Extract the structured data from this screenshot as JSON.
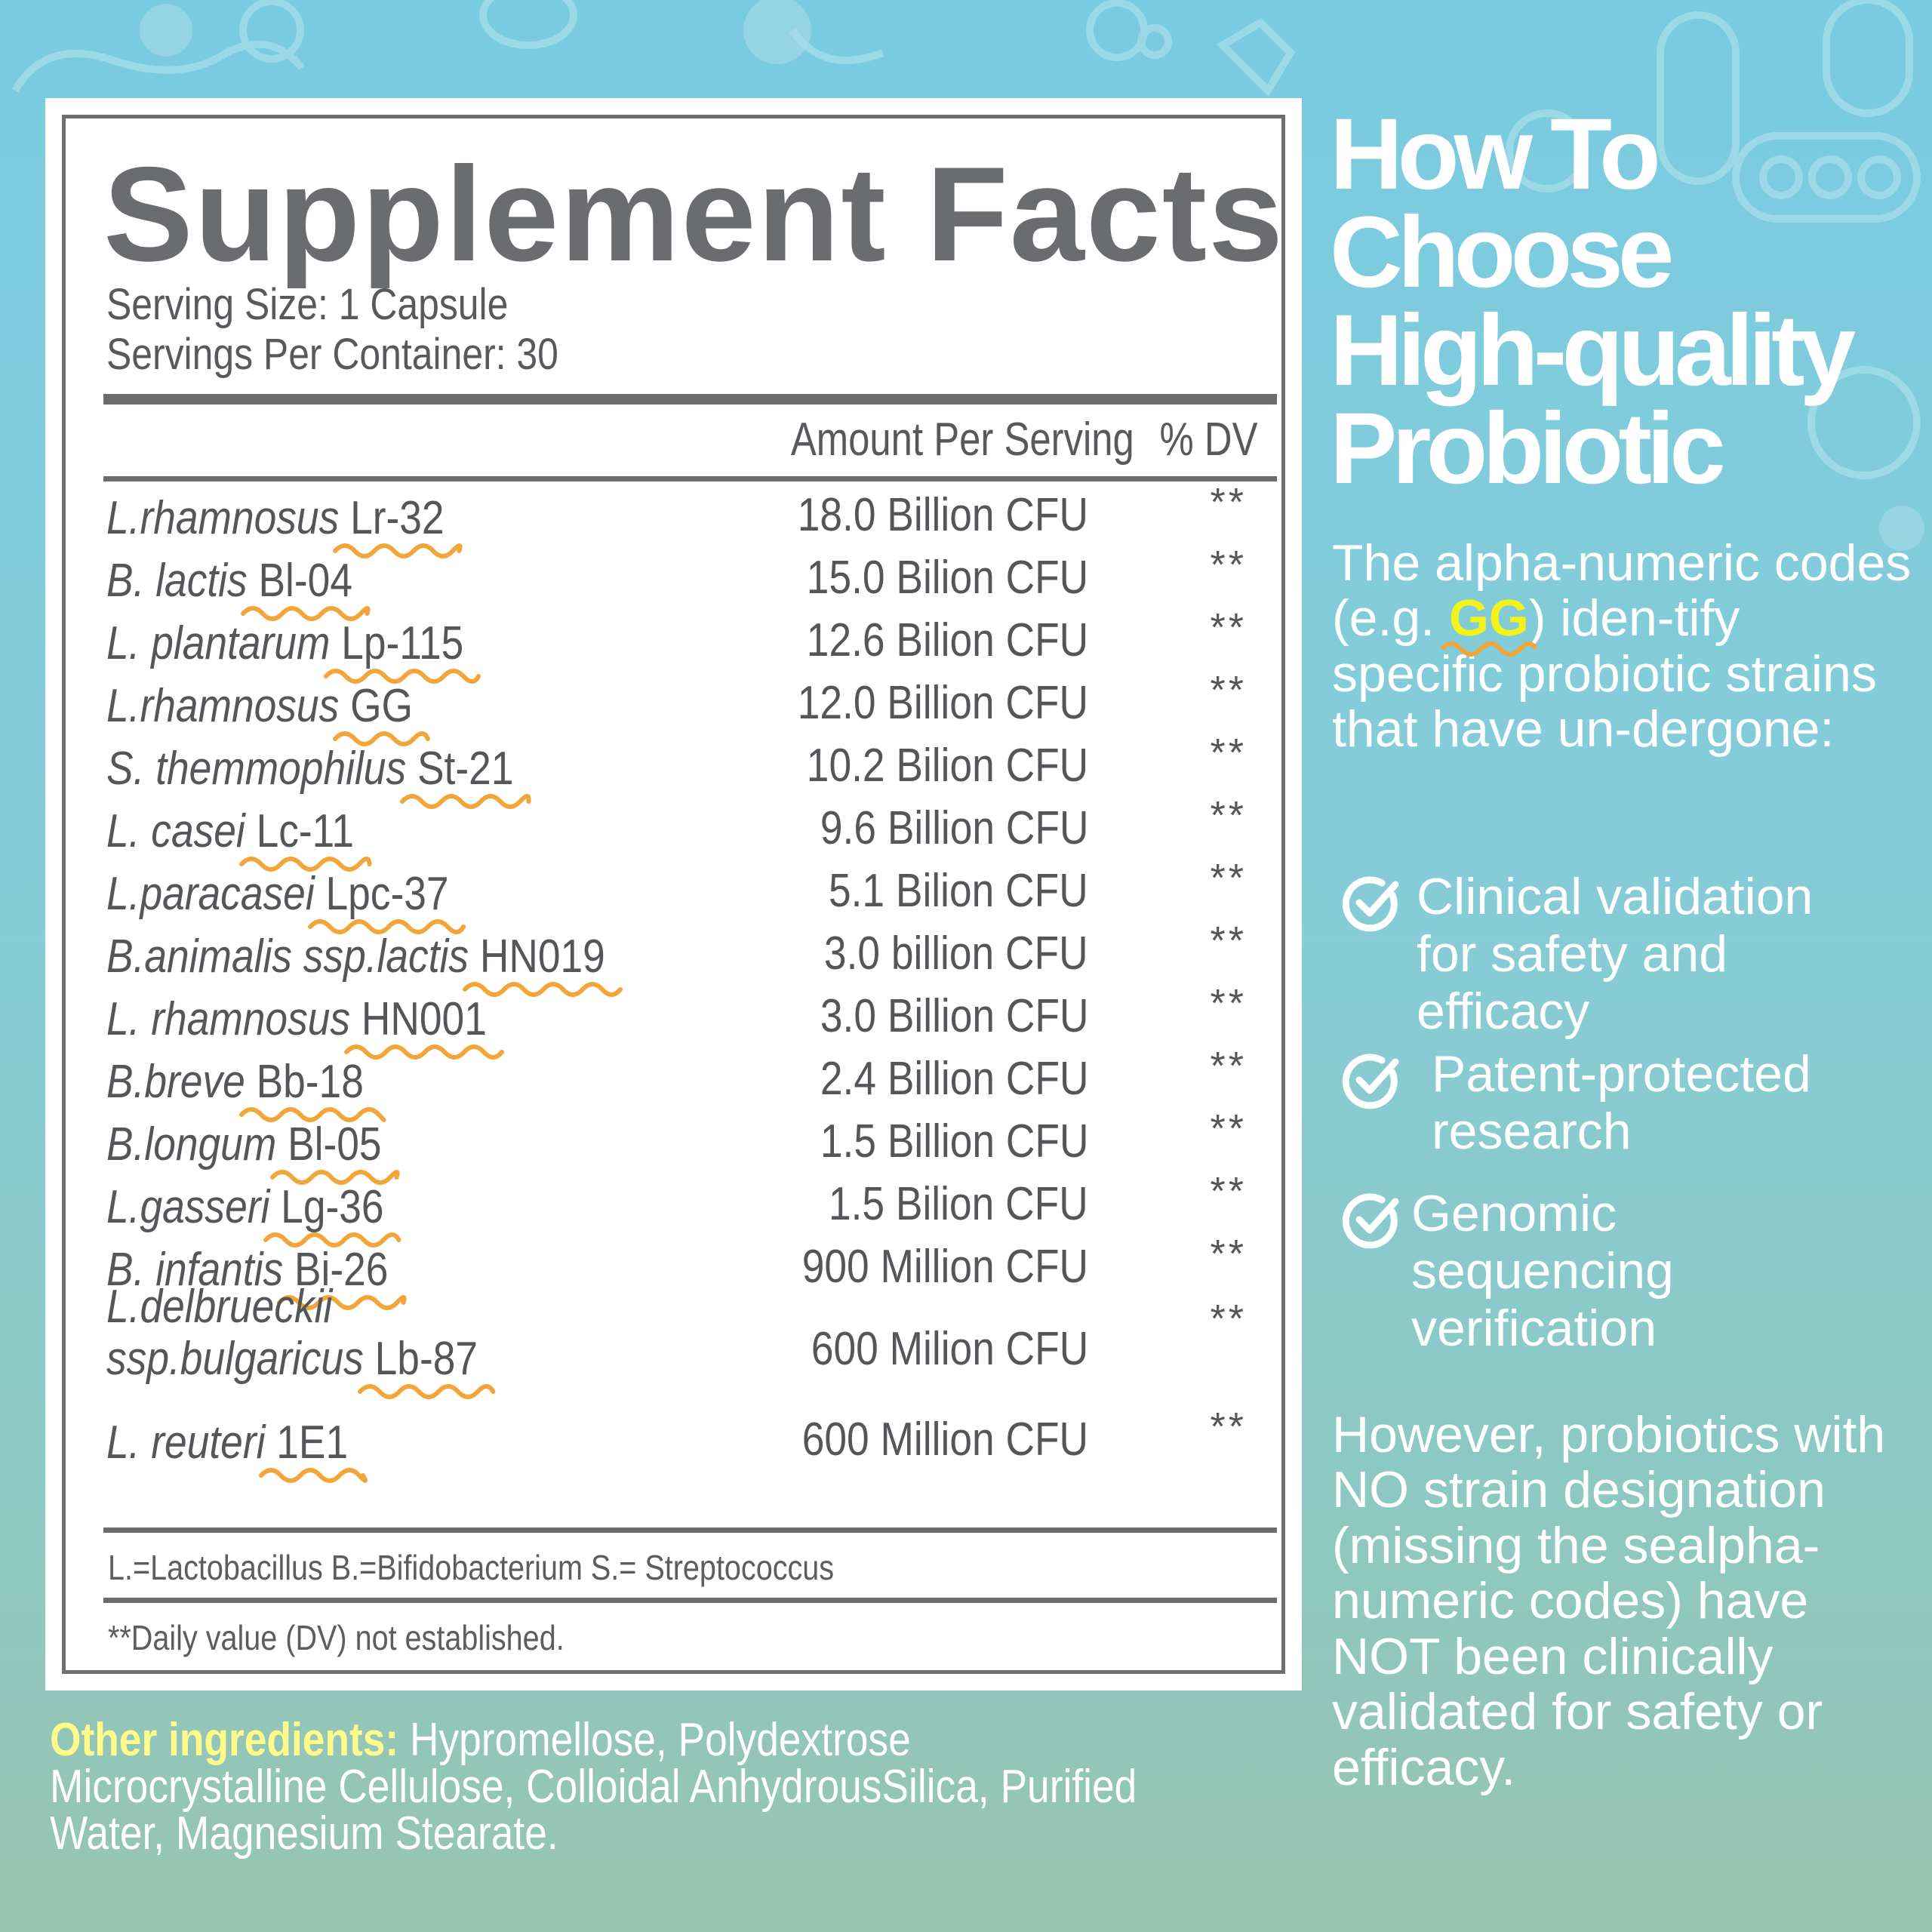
{
  "panel": {
    "title": "Supplement Facts",
    "serving_size": "Serving Size: 1 Capsule",
    "servings_per_container": "Servings Per Container: 30",
    "header_amount": "Amount Per Serving",
    "header_dv": "% DV",
    "rows": [
      {
        "species": "L.rhamnosus",
        "strain": "Lr-32",
        "amount": "18.0 Billion CFU",
        "dv": "**"
      },
      {
        "species": "B. lactis",
        "strain": "Bl-04",
        "amount": "15.0 Bilion CFU",
        "dv": "**"
      },
      {
        "species": "L. plantarum",
        "strain": "Lp-115",
        "amount": "12.6 Bilion CFU",
        "dv": "**"
      },
      {
        "species": "L.rhamnosus",
        "strain": "GG",
        "amount": "12.0 Billion CFU",
        "dv": "**"
      },
      {
        "species": "S. themmophilus",
        "strain": "St-21",
        "amount": "10.2 Bilion CFU",
        "dv": "**"
      },
      {
        "species": "L. casei",
        "strain": "Lc-11",
        "amount": "9.6 Billion CFU",
        "dv": "**"
      },
      {
        "species": "L.paracasei",
        "strain": "Lpc-37",
        "amount": "5.1 Bilion CFU",
        "dv": "**"
      },
      {
        "species": "B.animalis ssp.lactis",
        "strain": "HN019",
        "amount": "3.0 billion CFU",
        "dv": "**"
      },
      {
        "species": "L. rhamnosus",
        "strain": "HN001",
        "amount": "3.0 Billion CFU",
        "dv": "**"
      },
      {
        "species": "B.breve",
        "strain": "Bb-18",
        "amount": "2.4 Billion CFU",
        "dv": "**"
      },
      {
        "species": "B.longum",
        "strain": "Bl-05",
        "amount": "1.5 Billion CFU",
        "dv": "**"
      },
      {
        "species": "L.gasseri",
        "strain": "Lg-36",
        "amount": "1.5 Bilion CFU",
        "dv": "**"
      },
      {
        "species": "B. infantis",
        "strain": "Bi-26",
        "amount": "900 Million CFU",
        "dv": "**"
      },
      {
        "species_line1": "L.delbrueckii",
        "species": "ssp.bulgaricus",
        "strain": "Lb-87",
        "amount": "600 Milion CFU",
        "dv": "**"
      },
      {
        "species": "L. reuteri",
        "strain": "1E1",
        "amount": "600 Million CFU",
        "dv": "**"
      }
    ],
    "abbreviations": "L.=Lactobacillus B.=Bifidobacterium S.= Streptococcus",
    "dv_note": "**Daily value (DV) not established."
  },
  "other_ingredients": {
    "label": "Other ingredients:",
    "text": " Hypromellose, Polydextrose Microcrystalline Cellulose, Colloidal AnhydrousSilica, Purified Water, Magnesium Stearate."
  },
  "sidebar": {
    "title_lines": [
      "How To",
      "Choose",
      "High-quality",
      "Probiotic"
    ],
    "intro_before": "The alpha-numeric codes (e.g. ",
    "intro_highlight": "GG",
    "intro_after": ") iden-tify specific probiotic strains that have un-dergone:",
    "bullets": [
      {
        "lines": [
          "Clinical validation",
          "for safety and",
          "efficacy"
        ]
      },
      {
        "lines": [
          "Patent-protected",
          "research"
        ]
      },
      {
        "lines": [
          "Genomic",
          "sequencing",
          "verification"
        ]
      }
    ],
    "however": "However, probiotics with NO strain designation (missing the sealpha-numeric codes) have NOT been clinically validated for safety or efficacy."
  },
  "colors": {
    "squiggle": "#f2a63a",
    "highlight": "#f5f11a",
    "panel_text": "#58595c",
    "panel_rule": "#6b6c70"
  },
  "icons": [
    "microbe-icon",
    "check-circle-icon"
  ]
}
